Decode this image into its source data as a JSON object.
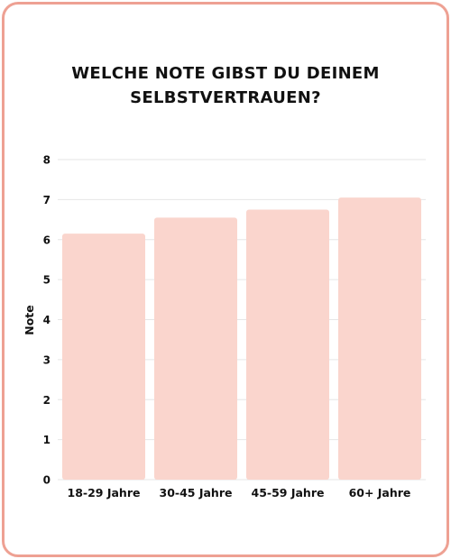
{
  "chart_data": {
    "type": "bar",
    "title_lines": [
      "WELCHE NOTE GIBST DU DEINEM",
      "SELBSTVERTRAUEN?"
    ],
    "categories": [
      "18-29 Jahre",
      "30-45 Jahre",
      "45-59 Jahre",
      "60+ Jahre"
    ],
    "values": [
      6.15,
      6.55,
      6.75,
      7.05
    ],
    "ylabel": "Note",
    "xlabel": "",
    "ylim": [
      0,
      8
    ],
    "yticks": [
      0,
      1,
      2,
      3,
      4,
      5,
      6,
      7,
      8
    ],
    "grid": true,
    "legend": "none"
  },
  "colors": {
    "bar": "#fad5cd",
    "border": "#eea193",
    "grid": "#e6e6e6",
    "text": "#111111"
  }
}
